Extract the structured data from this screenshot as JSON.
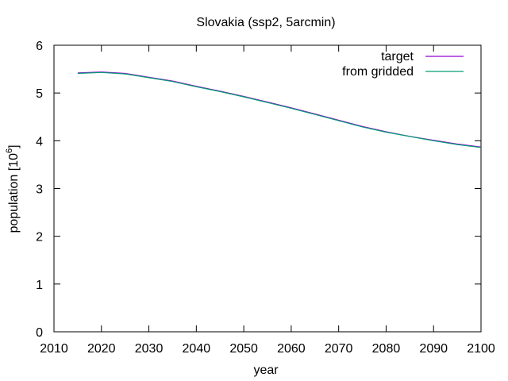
{
  "chart_data": {
    "type": "line",
    "title": "Slovakia (ssp2, 5arcmin)",
    "xlabel": "year",
    "ylabel_base": "population [10",
    "ylabel_exp": "6",
    "ylabel_close": "]",
    "xlim": [
      2010,
      2100
    ],
    "ylim": [
      0,
      6
    ],
    "xticks": [
      2010,
      2020,
      2030,
      2040,
      2050,
      2060,
      2070,
      2080,
      2090,
      2100
    ],
    "yticks": [
      0,
      1,
      2,
      3,
      4,
      5,
      6
    ],
    "legend_position": "top-right",
    "grid": false,
    "series": [
      {
        "name": "target",
        "color": "#9400d3",
        "x": [
          2015,
          2020,
          2025,
          2030,
          2035,
          2040,
          2045,
          2050,
          2055,
          2060,
          2065,
          2070,
          2075,
          2080,
          2085,
          2090,
          2095,
          2100
        ],
        "y": [
          5.42,
          5.44,
          5.41,
          5.33,
          5.25,
          5.14,
          5.04,
          4.93,
          4.81,
          4.69,
          4.56,
          4.43,
          4.3,
          4.19,
          4.09,
          4.01,
          3.93,
          3.87
        ]
      },
      {
        "name": "from gridded",
        "color": "#009e73",
        "x": [
          2015,
          2020,
          2025,
          2030,
          2035,
          2040,
          2045,
          2050,
          2055,
          2060,
          2065,
          2070,
          2075,
          2080,
          2085,
          2090,
          2095,
          2100
        ],
        "y": [
          5.41,
          5.43,
          5.4,
          5.32,
          5.24,
          5.13,
          5.03,
          4.92,
          4.8,
          4.68,
          4.55,
          4.42,
          4.29,
          4.18,
          4.09,
          4.0,
          3.92,
          3.86
        ]
      }
    ]
  }
}
